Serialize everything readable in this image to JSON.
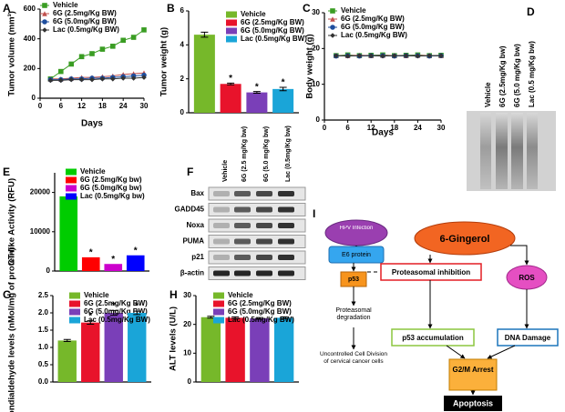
{
  "chart_data": [
    {
      "type": "line",
      "panel_label": "A",
      "y_label": "Tumor volume (mm³)",
      "x_label": "Days",
      "x": [
        3,
        6,
        9,
        12,
        15,
        18,
        21,
        24,
        27,
        30
      ],
      "xlim": [
        0,
        30
      ],
      "xticks": [
        0,
        6,
        12,
        18,
        24,
        30
      ],
      "ylim": [
        0,
        600
      ],
      "yticks": [
        0,
        200,
        400,
        600
      ],
      "series": [
        {
          "name": "Vehicle",
          "color": "#3a9d23",
          "marker": "square",
          "values": [
            130,
            180,
            230,
            280,
            300,
            330,
            350,
            390,
            410,
            460
          ]
        },
        {
          "name": "6G (2.5mg/Kg BW)",
          "color": "#c0504d",
          "marker": "triangle",
          "values": [
            130,
            130,
            135,
            140,
            140,
            145,
            150,
            160,
            165,
            170
          ]
        },
        {
          "name": "6G (5.0mg/Kg BW)",
          "color": "#1f4e9e",
          "marker": "circle",
          "values": [
            125,
            125,
            130,
            130,
            135,
            135,
            140,
            145,
            150,
            155
          ]
        },
        {
          "name": "Lac (0.5mg/Kg BW)",
          "color": "#333333",
          "marker": "diamond",
          "values": [
            120,
            120,
            125,
            125,
            125,
            130,
            130,
            135,
            135,
            140
          ]
        }
      ]
    },
    {
      "type": "bar",
      "panel_label": "B",
      "y_label": "Tumor weight (g)",
      "ylim": [
        0,
        6
      ],
      "yticks": [
        0,
        2,
        4,
        6
      ],
      "series": [
        {
          "name": "Vehicle",
          "color": "#76b82a",
          "values": [
            4.6
          ],
          "errors": [
            0.15
          ]
        },
        {
          "name": "6G (2.5mg/Kg BW)",
          "color": "#e8132b",
          "values": [
            1.7
          ],
          "errors": [
            0.05
          ],
          "annotation": "*"
        },
        {
          "name": "6G (5.0mg/Kg BW)",
          "color": "#7a3fb8",
          "values": [
            1.2
          ],
          "errors": [
            0.05
          ],
          "annotation": "*"
        },
        {
          "name": "Lac (0.5mg/Kg BW)",
          "color": "#1aa5d8",
          "values": [
            1.4
          ],
          "errors": [
            0.1
          ],
          "annotation": "*"
        }
      ]
    },
    {
      "type": "line",
      "panel_label": "C",
      "y_label": "Body weight (g)",
      "x_label": "Days",
      "x": [
        3,
        6,
        9,
        12,
        15,
        18,
        21,
        24,
        27,
        30
      ],
      "xlim": [
        0,
        30
      ],
      "xticks": [
        0,
        6,
        12,
        18,
        24,
        30
      ],
      "ylim": [
        0,
        30
      ],
      "yticks": [
        0,
        10,
        20,
        30
      ],
      "series": [
        {
          "name": "Vehicle",
          "color": "#3a9d23",
          "marker": "square",
          "values": [
            18,
            18.2,
            18,
            18.1,
            18.2,
            18,
            18.1,
            18.2,
            18,
            18.1
          ]
        },
        {
          "name": "6G (2.5mg/Kg BW)",
          "color": "#c0504d",
          "marker": "triangle",
          "values": [
            18,
            18,
            18.1,
            18,
            18.1,
            18,
            18,
            18.1,
            18,
            18
          ]
        },
        {
          "name": "6G (5.0mg/Kg BW)",
          "color": "#1f4e9e",
          "marker": "circle",
          "values": [
            17.9,
            18,
            17.9,
            18,
            18,
            17.9,
            18,
            18,
            17.9,
            18
          ]
        },
        {
          "name": "Lac (0.5mg/Kg BW)",
          "color": "#333333",
          "marker": "diamond",
          "values": [
            18,
            17.9,
            18,
            18,
            17.9,
            18,
            18,
            17.9,
            18,
            18
          ]
        }
      ]
    },
    {
      "type": "bar",
      "panel_label": "E",
      "y_label": "CT-like Activity (RFU)",
      "ylim": [
        0,
        25000
      ],
      "yticks": [
        0,
        10000,
        20000
      ],
      "series": [
        {
          "name": "Vehicle",
          "color": "#00cc00",
          "values": [
            19000
          ]
        },
        {
          "name": "6G (2.5mg/Kg bw)",
          "color": "#ff0000",
          "values": [
            3500
          ],
          "annotation": "*"
        },
        {
          "name": "6G (5.0mg/Kg bw)",
          "color": "#cc00cc",
          "values": [
            1800
          ],
          "annotation": "*"
        },
        {
          "name": "Lac (0.5mg/Kg bw)",
          "color": "#0000ff",
          "values": [
            4000
          ],
          "annotation": "*"
        }
      ]
    },
    {
      "type": "bar",
      "panel_label": "G",
      "y_label": "Malondialdehyde levels (nMol/mg of protein)",
      "ylim": [
        0,
        2.5
      ],
      "yticks": [
        {
          "value": 0,
          "label": "0.0"
        },
        0.5,
        {
          "value": 1,
          "label": "1.0"
        },
        1.5,
        {
          "value": 2,
          "label": "2.0"
        },
        2.5
      ],
      "series": [
        {
          "name": "Vehicle",
          "color": "#76b82a",
          "values": [
            1.2
          ],
          "errors": [
            0.03
          ]
        },
        {
          "name": "6G (2.5mg/Kg BW)",
          "color": "#e8132b",
          "values": [
            1.72
          ],
          "errors": [
            0.05
          ],
          "annotation": "*"
        },
        {
          "name": "6G (5.0mg/Kg BW)",
          "color": "#7a3fb8",
          "values": [
            2.0
          ],
          "errors": [
            0.07
          ],
          "annotation": "*"
        },
        {
          "name": "Lac (0.5mg/Kg BW)",
          "color": "#1aa5d8",
          "values": [
            2.0
          ],
          "errors": [
            0.05
          ],
          "annotation": "*"
        }
      ]
    },
    {
      "type": "bar",
      "panel_label": "H",
      "y_label": "ALT levels (U/L)",
      "ylim": [
        0,
        30
      ],
      "yticks": [
        0,
        10,
        20,
        30
      ],
      "series": [
        {
          "name": "Vehicle",
          "color": "#76b82a",
          "values": [
            22.5
          ],
          "errors": [
            0.3
          ]
        },
        {
          "name": "6G (2.5mg/Kg BW)",
          "color": "#e8132b",
          "values": [
            22.3
          ],
          "errors": [
            0.3
          ]
        },
        {
          "name": "6G (5.0mg/Kg BW)",
          "color": "#7a3fb8",
          "values": [
            22.1
          ],
          "errors": [
            0.3
          ]
        },
        {
          "name": "Lac (0.5mg/Kg BW)",
          "color": "#1aa5d8",
          "values": [
            22.3
          ],
          "errors": [
            0.3
          ]
        }
      ]
    }
  ],
  "blot_d": {
    "panel_label": "D",
    "lanes": [
      "Vehicle",
      "6G (2.5mg/Kg bw)",
      "6G (5.0 mg/Kg bw)",
      "Lac (0.5 mg/Kg bw)"
    ]
  },
  "blot_f": {
    "panel_label": "F",
    "lanes": [
      "Vehicle",
      "6G (2.5 mg/Kg bw)",
      "6G (5.0 mg/Kg bw)",
      "Lac (0.5mg/Kg bw)"
    ],
    "rows": [
      "Bax",
      "GADD45",
      "Noxa",
      "PUMA",
      "p21",
      "β-actin"
    ]
  },
  "diagram": {
    "panel_label": "I",
    "nodes": [
      {
        "label": "HPV Infection"
      },
      {
        "label": "E6 protein"
      },
      {
        "label": "p53"
      },
      {
        "label": "Proteasomal degradation"
      },
      {
        "label": "Uncontrolled Cell Division of cervical cancer cells"
      },
      {
        "label": "6-Gingerol"
      },
      {
        "label": "Proteasomal inhibition"
      },
      {
        "label": "ROS"
      },
      {
        "label": "p53 accumulation"
      },
      {
        "label": "DNA Damage"
      },
      {
        "label": "G2/M Arrest"
      },
      {
        "label": "Apoptosis"
      }
    ]
  }
}
